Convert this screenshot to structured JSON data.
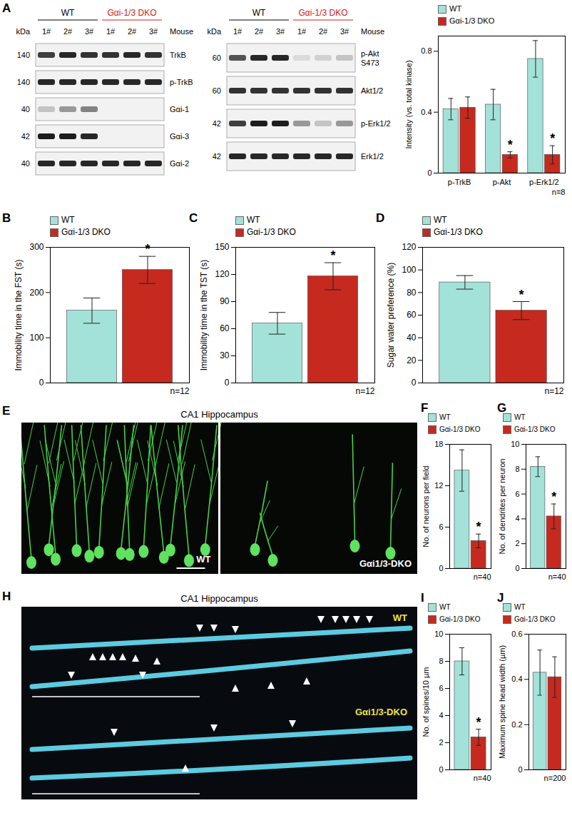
{
  "panel_labels": [
    "A",
    "B",
    "C",
    "D",
    "E",
    "F",
    "G",
    "H",
    "I",
    "J"
  ],
  "blots": [
    {
      "groups": [
        {
          "label": "WT",
          "color": "#000000"
        },
        {
          "label": "Gαi-1/3 DKO",
          "color": "#d0211b"
        }
      ],
      "kda_label": "kDa",
      "mouse_label": "Mouse",
      "lanes": [
        "1#",
        "2#",
        "3#",
        "1#",
        "2#",
        "3#"
      ],
      "rows": [
        {
          "kda": 140,
          "name": "TrkB",
          "bands": [
            0.8,
            0.9,
            0.85,
            0.85,
            0.9,
            0.85
          ]
        },
        {
          "kda": 140,
          "name": "p-TrkB",
          "bands": [
            0.9,
            0.9,
            0.9,
            0.9,
            0.9,
            0.9
          ]
        },
        {
          "kda": 40,
          "name": "Gαi-1",
          "bands": [
            0.2,
            0.4,
            0.5,
            0,
            0,
            0
          ]
        },
        {
          "kda": 42,
          "name": "Gαi-3",
          "bands": [
            0.95,
            0.95,
            0.9,
            0,
            0,
            0
          ]
        },
        {
          "kda": 40,
          "name": "Gαi-2",
          "bands": [
            0.9,
            0.9,
            0.9,
            0.9,
            0.9,
            0.9
          ]
        }
      ]
    },
    {
      "groups": [
        {
          "label": "WT",
          "color": "#000000"
        },
        {
          "label": "Gαi-1/3 DKO",
          "color": "#d0211b"
        }
      ],
      "kda_label": "kDa",
      "mouse_label": "Mouse",
      "lanes": [
        "1#",
        "2#",
        "3#",
        "1#",
        "2#",
        "3#"
      ],
      "rows": [
        {
          "kda": 60,
          "name": [
            "p-Akt",
            "S473"
          ],
          "bands": [
            0.7,
            0.9,
            0.9,
            0.1,
            0.15,
            0.2
          ]
        },
        {
          "kda": 60,
          "name": "Akt1/2",
          "bands": [
            0.85,
            0.85,
            0.85,
            0.85,
            0.85,
            0.85
          ]
        },
        {
          "kda": 42,
          "name": "p-Erk1/2",
          "bands": [
            0.8,
            0.95,
            0.95,
            0.4,
            0.2,
            0.4
          ]
        },
        {
          "kda": 42,
          "name": "Erk1/2",
          "bands": [
            0.9,
            0.9,
            0.9,
            0.9,
            0.9,
            0.9
          ]
        }
      ]
    }
  ],
  "images": [
    {
      "title": "CA1 Hippocampus",
      "labels": [
        {
          "text": "WT",
          "color": "#ffffff"
        },
        {
          "text": "Gαi1/3-DKO",
          "color": "#ffffff"
        }
      ]
    },
    {
      "title": "CA1 Hippocampus",
      "labels": [
        {
          "text": "WT",
          "color": "#f2e040"
        },
        {
          "text": "Gαi1/3-DKO",
          "color": "#f2e040"
        }
      ]
    }
  ],
  "chart_data": [
    {
      "type": "bar",
      "categories": [
        "p-TrkB",
        "p-Akt",
        "p-Erk1/2"
      ],
      "series": [
        {
          "name": "WT",
          "color": "#a3e2d8",
          "values": [
            0.42,
            0.45,
            0.75
          ],
          "errors": [
            0.07,
            0.1,
            0.12
          ]
        },
        {
          "name": "Gαi-1/3 DKO",
          "color": "#c62a1f",
          "values": [
            0.43,
            0.12,
            0.12
          ],
          "errors": [
            0.07,
            0.02,
            0.06
          ]
        }
      ],
      "y_label": "Intensity (vs. total kinase)",
      "ylim": [
        0,
        0.9
      ],
      "yticks": [
        0,
        0.4,
        0.8
      ],
      "legend": "top-left",
      "annotations": [
        {
          "category": "p-Akt",
          "series": "Gαi-1/3 DKO",
          "text": "*"
        },
        {
          "category": "p-Erk1/2",
          "series": "Gαi-1/3 DKO",
          "text": "*"
        },
        {
          "text": "n=8"
        }
      ]
    },
    {
      "type": "bar",
      "categories": [
        null
      ],
      "series": [
        {
          "name": "WT",
          "color": "#a3e2d8",
          "values": [
            160
          ],
          "errors": [
            28
          ]
        },
        {
          "name": "Gαi-1/3 DKO",
          "color": "#c62a1f",
          "values": [
            250
          ],
          "errors": [
            30
          ]
        }
      ],
      "y_label": "Immobility time in the FST (s)",
      "ylim": [
        0,
        300
      ],
      "yticks": [
        0,
        100,
        200,
        300
      ],
      "legend": "top-left",
      "tick_labels": "y",
      "annotations": [
        {
          "series": "Gαi-1/3 DKO",
          "text": "*"
        },
        {
          "text": "n=12"
        }
      ]
    },
    {
      "type": "bar",
      "categories": [
        null
      ],
      "series": [
        {
          "name": "WT",
          "color": "#a3e2d8",
          "values": [
            66
          ],
          "errors": [
            12
          ]
        },
        {
          "name": "Gαi-1/3 DKO",
          "color": "#c62a1f",
          "values": [
            118
          ],
          "errors": [
            15
          ]
        }
      ],
      "y_label": "Immobility time in the TST (s)",
      "ylim": [
        0,
        150
      ],
      "yticks": [
        0,
        30,
        60,
        90,
        120,
        150
      ],
      "legend": "top-left",
      "tick_labels": "y",
      "annotations": [
        {
          "series": "Gαi-1/3 DKO",
          "text": "*"
        },
        {
          "text": "n=12"
        }
      ]
    },
    {
      "type": "bar",
      "categories": [
        null
      ],
      "series": [
        {
          "name": "WT",
          "color": "#a3e2d8",
          "values": [
            89
          ],
          "errors": [
            6
          ]
        },
        {
          "name": "Gαi-1/3 DKO",
          "color": "#c62a1f",
          "values": [
            64
          ],
          "errors": [
            8
          ]
        }
      ],
      "y_label": "Sugar water preference (%)",
      "ylim": [
        0,
        120
      ],
      "yticks": [
        0,
        20,
        40,
        60,
        80,
        100,
        120
      ],
      "legend": "top-left",
      "tick_labels": "y",
      "annotations": [
        {
          "series": "Gαi-1/3 DKO",
          "text": "*"
        },
        {
          "text": "n=12"
        }
      ]
    },
    {
      "type": "bar",
      "categories": [
        null
      ],
      "series": [
        {
          "name": "WT",
          "color": "#a3e2d8",
          "values": [
            14.2
          ],
          "errors": [
            3
          ]
        },
        {
          "name": "Gαi-1/3 DKO",
          "color": "#c62a1f",
          "values": [
            4
          ],
          "errors": [
            1
          ]
        }
      ],
      "y_label": "No. of neurons per field",
      "ylim": [
        0,
        18
      ],
      "yticks": [
        0,
        6,
        12,
        18
      ],
      "legend": "top-left",
      "tick_labels": "y",
      "annotations": [
        {
          "series": "Gαi-1/3 DKO",
          "text": "*"
        },
        {
          "text": "n=40"
        }
      ]
    },
    {
      "type": "bar",
      "categories": [
        null
      ],
      "series": [
        {
          "name": "WT",
          "color": "#a3e2d8",
          "values": [
            8.2
          ],
          "errors": [
            0.8
          ]
        },
        {
          "name": "Gαi-1/3 DKO",
          "color": "#c62a1f",
          "values": [
            4.2
          ],
          "errors": [
            1
          ]
        }
      ],
      "y_label": "No. of dendrites per neuron",
      "ylim": [
        0,
        10
      ],
      "yticks": [
        0,
        2,
        4,
        6,
        8,
        10
      ],
      "legend": "top-left",
      "tick_labels": "y",
      "annotations": [
        {
          "series": "Gαi-1/3 DKO",
          "text": "*"
        },
        {
          "text": "n=40"
        }
      ]
    },
    {
      "type": "bar",
      "categories": [
        null
      ],
      "series": [
        {
          "name": "WT",
          "color": "#a3e2d8",
          "values": [
            8
          ],
          "errors": [
            1
          ]
        },
        {
          "name": "Gαi-1/3 DKO",
          "color": "#c62a1f",
          "values": [
            2.4
          ],
          "errors": [
            0.6
          ]
        }
      ],
      "y_label": "No. of spines/10 µm",
      "ylim": [
        0,
        10
      ],
      "yticks": [
        0,
        2,
        4,
        6,
        8,
        10
      ],
      "legend": "top-left",
      "tick_labels": "y",
      "annotations": [
        {
          "series": "Gαi-1/3 DKO",
          "text": "*"
        },
        {
          "text": "n=40"
        }
      ]
    },
    {
      "type": "bar",
      "categories": [
        null
      ],
      "series": [
        {
          "name": "WT",
          "color": "#a3e2d8",
          "values": [
            0.43
          ],
          "errors": [
            0.1
          ]
        },
        {
          "name": "Gαi-1/3 DKO",
          "color": "#c62a1f",
          "values": [
            0.41
          ],
          "errors": [
            0.09
          ]
        }
      ],
      "y_label": "Maximum spine head width (µm)",
      "ylim": [
        0,
        0.6
      ],
      "yticks": [
        0,
        0.2,
        0.4,
        0.6
      ],
      "legend": "top-left",
      "tick_labels": "y",
      "annotations": [
        {
          "text": "n=200"
        }
      ]
    }
  ]
}
